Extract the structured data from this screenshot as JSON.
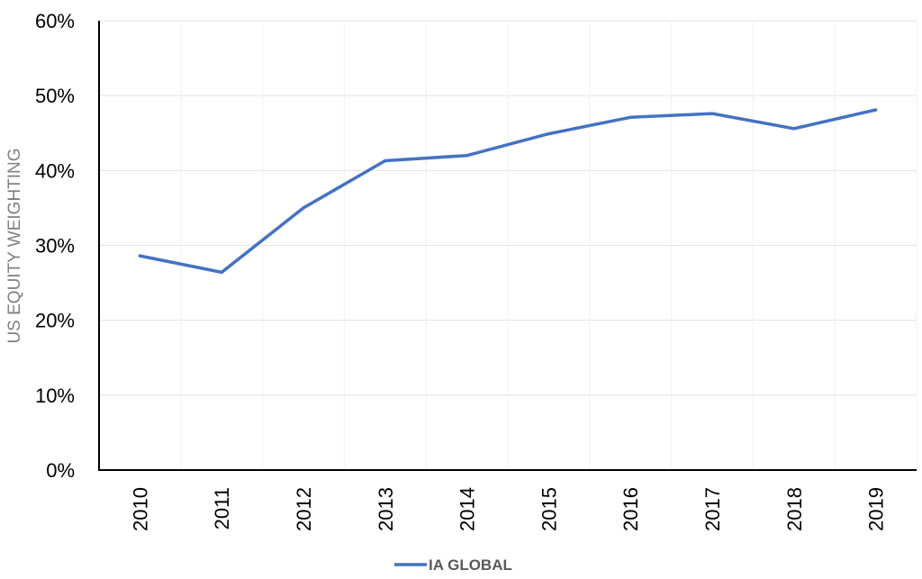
{
  "chart_data": {
    "type": "line",
    "title": "",
    "xlabel": "",
    "ylabel": "US EQUITY WEIGHTING",
    "categories": [
      "2010",
      "2011",
      "2012",
      "2013",
      "2014",
      "2015",
      "2016",
      "2017",
      "2018",
      "2019"
    ],
    "series": [
      {
        "name": "IA GLOBAL",
        "color": "#4472C4",
        "values": [
          28.6,
          26.4,
          35.0,
          41.3,
          42.0,
          44.9,
          47.1,
          47.6,
          45.6,
          48.1
        ]
      }
    ],
    "ylim": [
      0,
      60
    ],
    "yticks": [
      0,
      10,
      20,
      30,
      40,
      50,
      60
    ],
    "ytick_labels": [
      "0%",
      "10%",
      "20%",
      "30%",
      "40%",
      "50%",
      "60%"
    ],
    "grid": true,
    "legend_position": "bottom"
  }
}
